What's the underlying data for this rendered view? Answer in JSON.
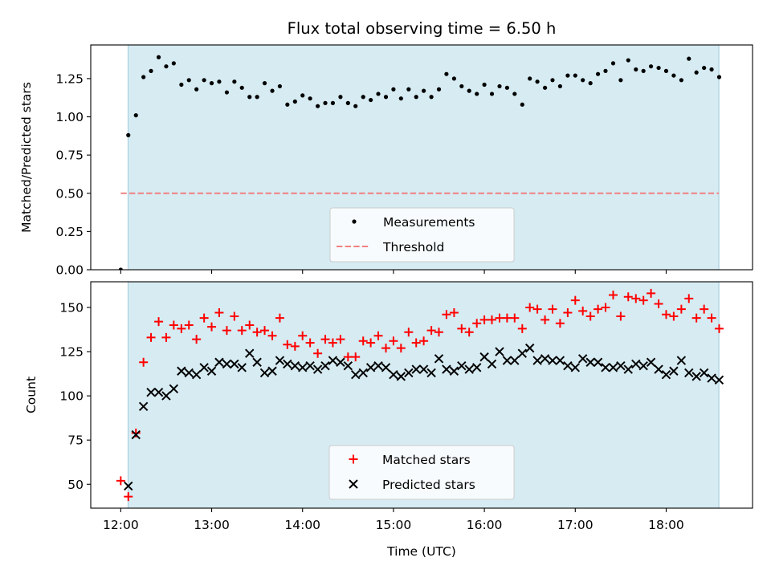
{
  "title": "Flux total observing time = 6.50 h",
  "chart_data": [
    {
      "type": "scatter",
      "ylabel": "Matched/Predicted stars",
      "xlim": [
        11.67,
        18.95
      ],
      "ylim": [
        0.0,
        1.47
      ],
      "yticks": [
        0.0,
        0.25,
        0.5,
        0.75,
        1.0,
        1.25
      ],
      "ytick_labels": [
        "0.00",
        "0.25",
        "0.50",
        "0.75",
        "1.00",
        "1.25"
      ],
      "shaded_span": [
        12.08,
        18.58
      ],
      "threshold": {
        "y": 0.5,
        "x": [
          12.0,
          18.58
        ],
        "label": "Threshold",
        "color": "#f08080"
      },
      "legend_location": "lower-center",
      "series": [
        {
          "name": "Measurements",
          "marker": "dot",
          "color": "#000000",
          "x": [
            12.0,
            12.083,
            12.167,
            12.25,
            12.333,
            12.417,
            12.5,
            12.583,
            12.667,
            12.75,
            12.833,
            12.917,
            13.0,
            13.083,
            13.167,
            13.25,
            13.333,
            13.417,
            13.5,
            13.583,
            13.667,
            13.75,
            13.833,
            13.917,
            14.0,
            14.083,
            14.167,
            14.25,
            14.333,
            14.417,
            14.5,
            14.583,
            14.667,
            14.75,
            14.833,
            14.917,
            15.0,
            15.083,
            15.167,
            15.25,
            15.333,
            15.417,
            15.5,
            15.583,
            15.667,
            15.75,
            15.833,
            15.917,
            16.0,
            16.083,
            16.167,
            16.25,
            16.333,
            16.417,
            16.5,
            16.583,
            16.667,
            16.75,
            16.833,
            16.917,
            17.0,
            17.083,
            17.167,
            17.25,
            17.333,
            17.417,
            17.5,
            17.583,
            17.667,
            17.75,
            17.833,
            17.917,
            18.0,
            18.083,
            18.167,
            18.25,
            18.333,
            18.417,
            18.5,
            18.583
          ],
          "y": [
            0.0,
            0.88,
            1.01,
            1.26,
            1.3,
            1.39,
            1.33,
            1.35,
            1.21,
            1.24,
            1.18,
            1.24,
            1.22,
            1.23,
            1.16,
            1.23,
            1.19,
            1.13,
            1.13,
            1.22,
            1.17,
            1.2,
            1.08,
            1.1,
            1.14,
            1.12,
            1.07,
            1.09,
            1.09,
            1.13,
            1.09,
            1.07,
            1.13,
            1.11,
            1.15,
            1.13,
            1.18,
            1.12,
            1.18,
            1.13,
            1.17,
            1.13,
            1.18,
            1.28,
            1.25,
            1.2,
            1.17,
            1.15,
            1.21,
            1.15,
            1.2,
            1.19,
            1.15,
            1.08,
            1.25,
            1.23,
            1.19,
            1.24,
            1.2,
            1.27,
            1.27,
            1.24,
            1.22,
            1.28,
            1.3,
            1.35,
            1.24,
            1.37,
            1.31,
            1.3,
            1.33,
            1.32,
            1.3,
            1.27,
            1.24,
            1.38,
            1.29,
            1.32,
            1.31,
            1.26
          ]
        }
      ]
    },
    {
      "type": "scatter",
      "ylabel": "Count",
      "xlabel": "Time (UTC)",
      "xlim": [
        11.67,
        18.95
      ],
      "ylim": [
        36.5,
        164.5
      ],
      "xticks": [
        12,
        13,
        14,
        15,
        16,
        17,
        18
      ],
      "xtick_labels": [
        "12:00",
        "13:00",
        "14:00",
        "15:00",
        "16:00",
        "17:00",
        "18:00"
      ],
      "yticks": [
        50,
        75,
        100,
        125,
        150
      ],
      "ytick_labels": [
        "50",
        "75",
        "100",
        "125",
        "150"
      ],
      "shaded_span": [
        12.08,
        18.58
      ],
      "legend_location": "lower-center",
      "series": [
        {
          "name": "Matched stars",
          "marker": "plus",
          "color": "#ff0000",
          "x": [
            12.0,
            12.083,
            12.167,
            12.25,
            12.333,
            12.417,
            12.5,
            12.583,
            12.667,
            12.75,
            12.833,
            12.917,
            13.0,
            13.083,
            13.167,
            13.25,
            13.333,
            13.417,
            13.5,
            13.583,
            13.667,
            13.75,
            13.833,
            13.917,
            14.0,
            14.083,
            14.167,
            14.25,
            14.333,
            14.417,
            14.5,
            14.583,
            14.667,
            14.75,
            14.833,
            14.917,
            15.0,
            15.083,
            15.167,
            15.25,
            15.333,
            15.417,
            15.5,
            15.583,
            15.667,
            15.75,
            15.833,
            15.917,
            16.0,
            16.083,
            16.167,
            16.25,
            16.333,
            16.417,
            16.5,
            16.583,
            16.667,
            16.75,
            16.833,
            16.917,
            17.0,
            17.083,
            17.167,
            17.25,
            17.333,
            17.417,
            17.5,
            17.583,
            17.667,
            17.75,
            17.833,
            17.917,
            18.0,
            18.083,
            18.167,
            18.25,
            18.333,
            18.417,
            18.5,
            18.583
          ],
          "y": [
            52,
            43,
            79,
            119,
            133,
            142,
            133,
            140,
            138,
            140,
            132,
            144,
            139,
            147,
            137,
            145,
            137,
            140,
            136,
            137,
            134,
            144,
            129,
            128,
            134,
            130,
            124,
            132,
            130,
            132,
            122,
            122,
            131,
            130,
            134,
            127,
            131,
            127,
            136,
            130,
            131,
            137,
            136,
            146,
            147,
            138,
            136,
            141,
            143,
            143,
            144,
            144,
            144,
            138,
            150,
            149,
            143,
            149,
            141,
            147,
            154,
            148,
            145,
            149,
            150,
            157,
            145,
            156,
            155,
            154,
            158,
            152,
            146,
            145,
            149,
            155,
            144,
            149,
            144,
            138
          ]
        },
        {
          "name": "Predicted stars",
          "marker": "x",
          "color": "#000000",
          "x": [
            12.083,
            12.167,
            12.25,
            12.333,
            12.417,
            12.5,
            12.583,
            12.667,
            12.75,
            12.833,
            12.917,
            13.0,
            13.083,
            13.167,
            13.25,
            13.333,
            13.417,
            13.5,
            13.583,
            13.667,
            13.75,
            13.833,
            13.917,
            14.0,
            14.083,
            14.167,
            14.25,
            14.333,
            14.417,
            14.5,
            14.583,
            14.667,
            14.75,
            14.833,
            14.917,
            15.0,
            15.083,
            15.167,
            15.25,
            15.333,
            15.417,
            15.5,
            15.583,
            15.667,
            15.75,
            15.833,
            15.917,
            16.0,
            16.083,
            16.167,
            16.25,
            16.333,
            16.417,
            16.5,
            16.583,
            16.667,
            16.75,
            16.833,
            16.917,
            17.0,
            17.083,
            17.167,
            17.25,
            17.333,
            17.417,
            17.5,
            17.583,
            17.667,
            17.75,
            17.833,
            17.917,
            18.0,
            18.083,
            18.167,
            18.25,
            18.333,
            18.417,
            18.5,
            18.583
          ],
          "y": [
            49,
            78,
            94,
            102,
            102,
            100,
            104,
            114,
            113,
            112,
            116,
            114,
            119,
            118,
            118,
            116,
            124,
            119,
            113,
            114,
            120,
            118,
            117,
            116,
            117,
            115,
            117,
            120,
            119,
            117,
            112,
            113,
            116,
            117,
            116,
            112,
            111,
            113,
            115,
            115,
            113,
            121,
            115,
            114,
            117,
            115,
            116,
            122,
            118,
            125,
            120,
            120,
            124,
            127,
            120,
            121,
            120,
            120,
            117,
            116,
            121,
            119,
            119,
            116,
            116,
            117,
            115,
            118,
            117,
            119,
            115,
            112,
            114,
            120,
            113,
            111,
            113,
            110,
            109
          ]
        }
      ]
    }
  ]
}
